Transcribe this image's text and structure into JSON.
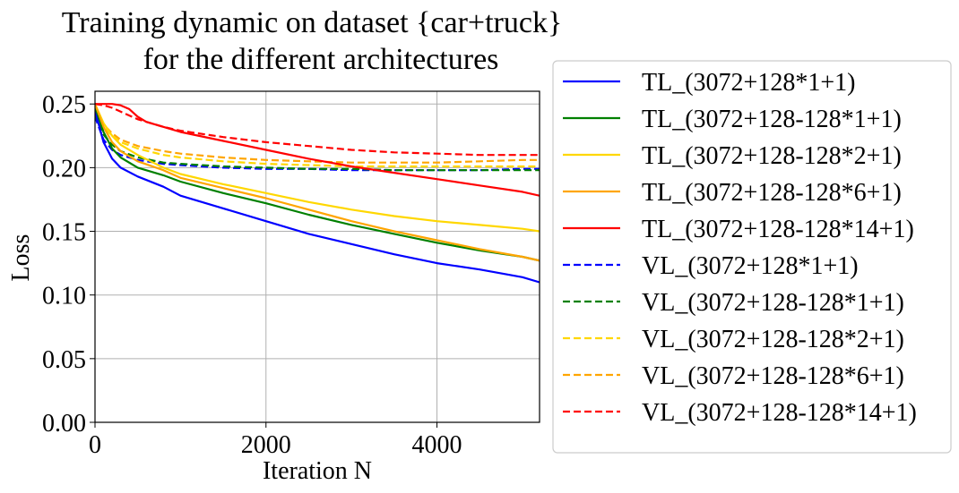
{
  "chart_data": {
    "type": "line",
    "title": [
      "Training dynamic on dataset {car+truck}",
      "for the different architectures"
    ],
    "xlabel": "Iteration N",
    "ylabel": "Loss",
    "xlim": [
      0,
      5200
    ],
    "ylim": [
      0,
      0.26
    ],
    "grid": true,
    "legend_placement": "outside-right",
    "x_ticks": [
      0,
      2000,
      4000
    ],
    "x_tick_labels": [
      "0",
      "2000",
      "4000"
    ],
    "y_ticks": [
      0,
      0.05,
      0.1,
      0.15,
      0.2,
      0.25
    ],
    "y_tick_labels": [
      "0.00",
      "0.05",
      "0.10",
      "0.15",
      "0.20",
      "0.25"
    ],
    "series": [
      {
        "name": "TL_(3072+128*1+1)",
        "color": "#0000ff",
        "style": "solid",
        "x": [
          0,
          100,
          200,
          300,
          500,
          800,
          1000,
          1500,
          2000,
          2500,
          3000,
          3500,
          4000,
          4500,
          5000,
          5200
        ],
        "y": [
          0.245,
          0.22,
          0.207,
          0.2,
          0.193,
          0.185,
          0.178,
          0.168,
          0.158,
          0.148,
          0.14,
          0.132,
          0.125,
          0.12,
          0.114,
          0.11
        ]
      },
      {
        "name": "TL_(3072+128-128*1+1)",
        "color": "#008000",
        "style": "solid",
        "x": [
          0,
          100,
          200,
          300,
          500,
          800,
          1000,
          1500,
          2000,
          2500,
          3000,
          3500,
          4000,
          4500,
          5000,
          5200
        ],
        "y": [
          0.248,
          0.228,
          0.215,
          0.208,
          0.2,
          0.194,
          0.189,
          0.18,
          0.172,
          0.163,
          0.155,
          0.148,
          0.141,
          0.135,
          0.13,
          0.127
        ]
      },
      {
        "name": "TL_(3072+128-128*2+1)",
        "color": "#ffd700",
        "style": "solid",
        "x": [
          0,
          100,
          200,
          300,
          500,
          800,
          1000,
          1500,
          2000,
          2500,
          3000,
          3500,
          4000,
          4500,
          5000,
          5200
        ],
        "y": [
          0.25,
          0.235,
          0.225,
          0.218,
          0.21,
          0.2,
          0.195,
          0.187,
          0.18,
          0.173,
          0.167,
          0.162,
          0.158,
          0.155,
          0.152,
          0.15
        ]
      },
      {
        "name": "TL_(3072+128-128*6+1)",
        "color": "#ffa500",
        "style": "solid",
        "x": [
          0,
          100,
          200,
          300,
          500,
          800,
          1000,
          1500,
          2000,
          2500,
          3000,
          3500,
          4000,
          4500,
          5000,
          5200
        ],
        "y": [
          0.25,
          0.232,
          0.22,
          0.213,
          0.205,
          0.198,
          0.192,
          0.184,
          0.176,
          0.167,
          0.158,
          0.15,
          0.143,
          0.136,
          0.13,
          0.127
        ]
      },
      {
        "name": "TL_(3072+128-128*14+1)",
        "color": "#ff0000",
        "style": "solid",
        "x": [
          0,
          100,
          200,
          300,
          400,
          500,
          600,
          800,
          1000,
          1500,
          2000,
          2500,
          3000,
          3500,
          4000,
          4500,
          5000,
          5200
        ],
        "y": [
          0.25,
          0.25,
          0.25,
          0.249,
          0.246,
          0.24,
          0.236,
          0.232,
          0.228,
          0.221,
          0.214,
          0.207,
          0.201,
          0.196,
          0.191,
          0.186,
          0.181,
          0.178
        ]
      },
      {
        "name": "VL_(3072+128*1+1)",
        "color": "#0000ff",
        "style": "dashed",
        "x": [
          0,
          100,
          200,
          300,
          500,
          800,
          1000,
          1500,
          2000,
          2500,
          3000,
          3500,
          4000,
          4500,
          5000,
          5200
        ],
        "y": [
          0.24,
          0.222,
          0.214,
          0.21,
          0.206,
          0.203,
          0.202,
          0.2,
          0.199,
          0.199,
          0.198,
          0.198,
          0.198,
          0.198,
          0.199,
          0.199
        ]
      },
      {
        "name": "VL_(3072+128-128*1+1)",
        "color": "#008000",
        "style": "dashed",
        "x": [
          0,
          100,
          200,
          300,
          500,
          800,
          1000,
          1500,
          2000,
          2500,
          3000,
          3500,
          4000,
          4500,
          5000,
          5200
        ],
        "y": [
          0.242,
          0.226,
          0.218,
          0.213,
          0.208,
          0.204,
          0.203,
          0.201,
          0.2,
          0.199,
          0.199,
          0.198,
          0.198,
          0.198,
          0.198,
          0.198
        ]
      },
      {
        "name": "VL_(3072+128-128*2+1)",
        "color": "#ffd700",
        "style": "dashed",
        "x": [
          0,
          100,
          200,
          300,
          500,
          800,
          1000,
          1500,
          2000,
          2500,
          3000,
          3500,
          4000,
          4500,
          5000,
          5200
        ],
        "y": [
          0.245,
          0.232,
          0.225,
          0.22,
          0.215,
          0.21,
          0.208,
          0.205,
          0.203,
          0.202,
          0.201,
          0.201,
          0.201,
          0.201,
          0.201,
          0.201
        ]
      },
      {
        "name": "VL_(3072+128-128*6+1)",
        "color": "#ffa500",
        "style": "dashed",
        "x": [
          0,
          100,
          200,
          300,
          500,
          800,
          1000,
          1500,
          2000,
          2500,
          3000,
          3500,
          4000,
          4500,
          5000,
          5200
        ],
        "y": [
          0.246,
          0.234,
          0.227,
          0.222,
          0.217,
          0.213,
          0.211,
          0.208,
          0.206,
          0.205,
          0.204,
          0.204,
          0.204,
          0.205,
          0.206,
          0.206
        ]
      },
      {
        "name": "VL_(3072+128-128*14+1)",
        "color": "#ff0000",
        "style": "dashed",
        "x": [
          0,
          100,
          200,
          300,
          500,
          800,
          1000,
          1500,
          2000,
          2500,
          3000,
          3500,
          4000,
          4500,
          5000,
          5200
        ],
        "y": [
          0.25,
          0.249,
          0.247,
          0.244,
          0.238,
          0.232,
          0.229,
          0.224,
          0.22,
          0.217,
          0.214,
          0.212,
          0.211,
          0.21,
          0.21,
          0.21
        ]
      }
    ]
  }
}
